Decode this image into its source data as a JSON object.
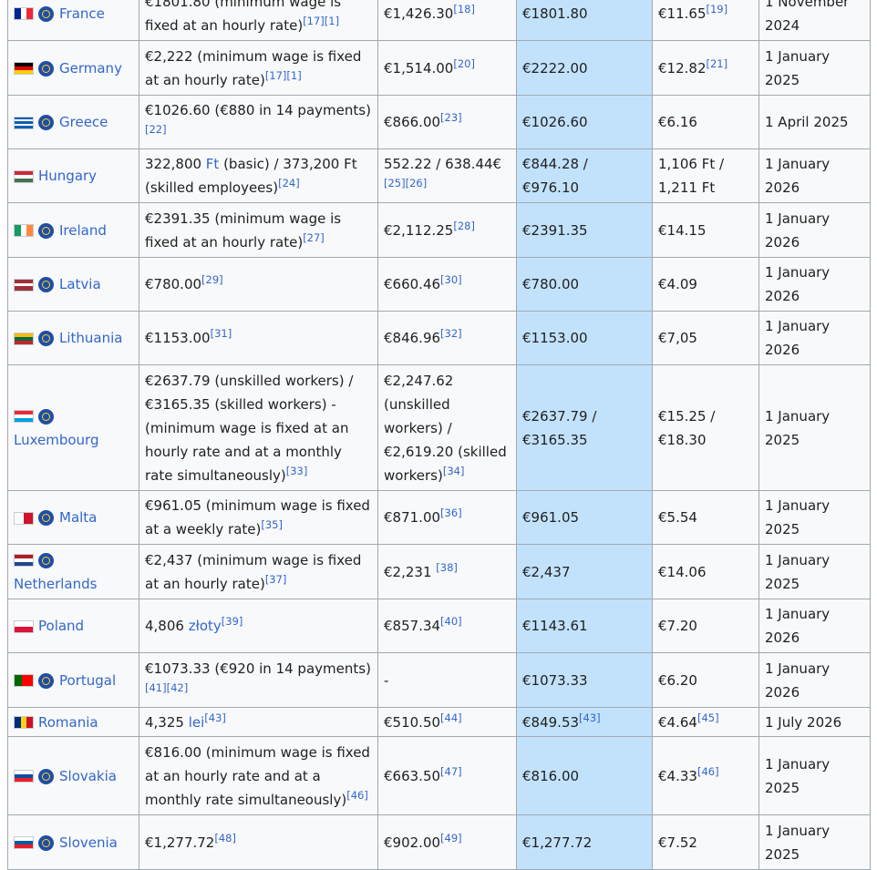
{
  "table": {
    "rows": [
      {
        "country": {
          "name": "France",
          "euro": true,
          "flag": {
            "dir": "v",
            "colors": [
              "#002395",
              "#ffffff",
              "#ed2939"
            ]
          }
        },
        "cells": [
          [
            {
              "text": "€1801.80 (minimum wage is fixed at an hourly rate)"
            },
            {
              "ref": "[17][1]"
            }
          ],
          [
            {
              "text": "€1,426.30"
            },
            {
              "ref": "[18]"
            }
          ],
          [
            {
              "text": "€1801.80"
            }
          ],
          [
            {
              "text": "€11.65"
            },
            {
              "ref": "[19]"
            }
          ],
          [
            {
              "text": "1 November 2024"
            }
          ]
        ]
      },
      {
        "country": {
          "name": "Germany",
          "euro": true,
          "flag": {
            "dir": "h",
            "colors": [
              "#000000",
              "#dd0000",
              "#ffce00"
            ]
          }
        },
        "cells": [
          [
            {
              "text": "€2,222 (minimum wage is fixed at an hourly rate)"
            },
            {
              "ref": "[17][1]"
            }
          ],
          [
            {
              "text": "€1,514.00"
            },
            {
              "ref": "[20]"
            }
          ],
          [
            {
              "text": "€2222.00"
            }
          ],
          [
            {
              "text": "€12.82"
            },
            {
              "ref": "[21]"
            }
          ],
          [
            {
              "text": "1 January 2025"
            }
          ]
        ]
      },
      {
        "country": {
          "name": "Greece",
          "euro": true,
          "flag": {
            "dir": "h",
            "colors": [
              "#0d5eaf",
              "#ffffff",
              "#0d5eaf",
              "#ffffff",
              "#0d5eaf"
            ]
          }
        },
        "cells": [
          [
            {
              "text": "€1026.60 (€880 in 14 payments)"
            },
            {
              "ref": "[22]"
            }
          ],
          [
            {
              "text": "€866.00"
            },
            {
              "ref": "[23]"
            }
          ],
          [
            {
              "text": "€1026.60"
            }
          ],
          [
            {
              "text": "€6.16"
            }
          ],
          [
            {
              "text": "1 April 2025"
            }
          ]
        ]
      },
      {
        "country": {
          "name": "Hungary",
          "euro": false,
          "flag": {
            "dir": "h",
            "colors": [
              "#ce2939",
              "#ffffff",
              "#477050"
            ]
          }
        },
        "cells": [
          [
            {
              "text": "322,800 "
            },
            {
              "link": "Ft"
            },
            {
              "text": " (basic) / 373,200 Ft (skilled employees)"
            },
            {
              "ref": "[24]"
            }
          ],
          [
            {
              "text": "552.22 / 638.44€ "
            },
            {
              "ref": "[25][26]"
            }
          ],
          [
            {
              "text": "€844.28 / €976.10"
            }
          ],
          [
            {
              "text": "1,106 Ft / 1,211 Ft"
            }
          ],
          [
            {
              "text": "1 January 2026"
            }
          ]
        ]
      },
      {
        "country": {
          "name": "Ireland",
          "euro": true,
          "flag": {
            "dir": "v",
            "colors": [
              "#169b62",
              "#ffffff",
              "#ff883e"
            ]
          }
        },
        "cells": [
          [
            {
              "text": "€2391.35 (minimum wage is fixed at an hourly rate)"
            },
            {
              "ref": "[27]"
            }
          ],
          [
            {
              "text": "€2,112.25"
            },
            {
              "ref": "[28]"
            }
          ],
          [
            {
              "text": "€2391.35"
            }
          ],
          [
            {
              "text": "€14.15"
            }
          ],
          [
            {
              "text": "1 January 2026"
            }
          ]
        ]
      },
      {
        "country": {
          "name": "Latvia",
          "euro": true,
          "flag": {
            "dir": "h",
            "colors": [
              "#9e3039",
              "#9e3039",
              "#ffffff",
              "#9e3039",
              "#9e3039"
            ]
          }
        },
        "cells": [
          [
            {
              "text": "€780.00"
            },
            {
              "ref": "[29]"
            }
          ],
          [
            {
              "text": "€660.46"
            },
            {
              "ref": "[30]"
            }
          ],
          [
            {
              "text": "€780.00"
            }
          ],
          [
            {
              "text": "€4.09"
            }
          ],
          [
            {
              "text": "1 January 2026"
            }
          ]
        ]
      },
      {
        "country": {
          "name": "Lithuania",
          "euro": true,
          "flag": {
            "dir": "h",
            "colors": [
              "#fdb913",
              "#006a44",
              "#c1272d"
            ]
          }
        },
        "cells": [
          [
            {
              "text": "€1153.00"
            },
            {
              "ref": "[31]"
            }
          ],
          [
            {
              "text": "€846.96"
            },
            {
              "ref": "[32]"
            }
          ],
          [
            {
              "text": "€1153.00"
            }
          ],
          [
            {
              "text": "€7,05"
            }
          ],
          [
            {
              "text": "1 January 2026"
            }
          ]
        ]
      },
      {
        "country": {
          "name": "Luxembourg",
          "euro": true,
          "flag": {
            "dir": "h",
            "colors": [
              "#ed2939",
              "#ffffff",
              "#00a1de"
            ]
          }
        },
        "cells": [
          [
            {
              "text": "€2637.79 (unskilled workers) / €3165.35 (skilled workers) - (minimum wage is fixed at an hourly rate and at a monthly rate simultaneously)"
            },
            {
              "ref": "[33]"
            }
          ],
          [
            {
              "text": "€2,247.62 (unskilled workers) / €2,619.20 (skilled workers)"
            },
            {
              "ref": "[34]"
            }
          ],
          [
            {
              "text": "€2637.79 / €3165.35"
            }
          ],
          [
            {
              "text": "€15.25 / €18.30"
            }
          ],
          [
            {
              "text": "1 January 2025"
            }
          ]
        ]
      },
      {
        "country": {
          "name": "Malta",
          "euro": true,
          "flag": {
            "dir": "v",
            "colors": [
              "#ffffff",
              "#cf142b"
            ]
          }
        },
        "cells": [
          [
            {
              "text": "€961.05 (minimum wage is fixed at a weekly rate)"
            },
            {
              "ref": "[35]"
            }
          ],
          [
            {
              "text": "€871.00"
            },
            {
              "ref": "[36]"
            }
          ],
          [
            {
              "text": "€961.05"
            }
          ],
          [
            {
              "text": "€5.54"
            }
          ],
          [
            {
              "text": "1 January 2025"
            }
          ]
        ]
      },
      {
        "country": {
          "name": "Netherlands",
          "euro": true,
          "flag": {
            "dir": "h",
            "colors": [
              "#ae1c28",
              "#ffffff",
              "#21468b"
            ]
          }
        },
        "cells": [
          [
            {
              "text": "€2,437 (minimum wage is fixed at an hourly rate)"
            },
            {
              "ref": "[37]"
            }
          ],
          [
            {
              "text": "€2,231 "
            },
            {
              "ref": "[38]"
            }
          ],
          [
            {
              "text": "€2,437"
            }
          ],
          [
            {
              "text": "€14.06"
            }
          ],
          [
            {
              "text": "1 January 2025"
            }
          ]
        ]
      },
      {
        "country": {
          "name": "Poland",
          "euro": false,
          "flag": {
            "dir": "h",
            "colors": [
              "#ffffff",
              "#dc143c"
            ]
          }
        },
        "cells": [
          [
            {
              "text": "4,806 "
            },
            {
              "link": "złoty"
            },
            {
              "ref": "[39]"
            }
          ],
          [
            {
              "text": "€857.34"
            },
            {
              "ref": "[40]"
            }
          ],
          [
            {
              "text": "€1143.61"
            }
          ],
          [
            {
              "text": "€7.20"
            }
          ],
          [
            {
              "text": "1 January 2026"
            }
          ]
        ]
      },
      {
        "country": {
          "name": "Portugal",
          "euro": true,
          "flag": {
            "dir": "v",
            "colors": [
              "#006600",
              "#006600",
              "#ff0000",
              "#ff0000",
              "#ff0000"
            ]
          }
        },
        "cells": [
          [
            {
              "text": "€1073.33 (€920 in 14 payments)"
            },
            {
              "ref": "[41][42]"
            }
          ],
          [
            {
              "text": "-"
            }
          ],
          [
            {
              "text": "€1073.33"
            }
          ],
          [
            {
              "text": "€6.20"
            }
          ],
          [
            {
              "text": "1 January 2026"
            }
          ]
        ]
      },
      {
        "country": {
          "name": "Romania",
          "euro": false,
          "flag": {
            "dir": "v",
            "colors": [
              "#002b7f",
              "#fcd116",
              "#ce1126"
            ]
          }
        },
        "cells": [
          [
            {
              "text": "4,325 "
            },
            {
              "link": "lei"
            },
            {
              "ref": "[43]"
            }
          ],
          [
            {
              "text": "€510.50"
            },
            {
              "ref": "[44]"
            }
          ],
          [
            {
              "text": "€849.53"
            },
            {
              "ref": "[43]"
            }
          ],
          [
            {
              "text": "€4.64"
            },
            {
              "ref": "[45]"
            }
          ],
          [
            {
              "text": "1 July 2026"
            }
          ]
        ]
      },
      {
        "country": {
          "name": "Slovakia",
          "euro": true,
          "flag": {
            "dir": "h",
            "colors": [
              "#ffffff",
              "#0b4ea2",
              "#ee1c25"
            ]
          }
        },
        "cells": [
          [
            {
              "text": "€816.00 (minimum wage is fixed at an hourly rate and at a monthly rate simultaneously)"
            },
            {
              "ref": "[46]"
            }
          ],
          [
            {
              "text": "€663.50"
            },
            {
              "ref": "[47]"
            }
          ],
          [
            {
              "text": "€816.00"
            }
          ],
          [
            {
              "text": "€4.33"
            },
            {
              "ref": "[46]"
            }
          ],
          [
            {
              "text": "1 January 2025"
            }
          ]
        ]
      },
      {
        "country": {
          "name": "Slovenia",
          "euro": true,
          "flag": {
            "dir": "h",
            "colors": [
              "#ffffff",
              "#005da4",
              "#ed1c24"
            ]
          }
        },
        "cells": [
          [
            {
              "text": "€1,277.72"
            },
            {
              "ref": "[48]"
            }
          ],
          [
            {
              "text": "€902.00"
            },
            {
              "ref": "[49]"
            }
          ],
          [
            {
              "text": "€1,277.72"
            }
          ],
          [
            {
              "text": "€7.52"
            }
          ],
          [
            {
              "text": "1 January 2025"
            }
          ]
        ]
      }
    ]
  }
}
